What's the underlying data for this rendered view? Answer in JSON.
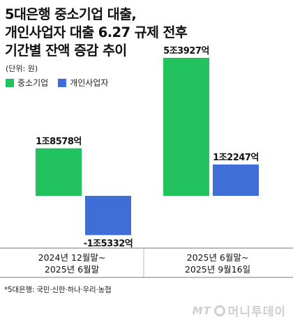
{
  "title_lines": [
    "5대은행 중소기업 대출,",
    "개인사업자 대출 6.27 규제 전후",
    "기간별 잔액 증감 추이"
  ],
  "unit": "(단위: 원)",
  "colors": {
    "sme": "#22c35e",
    "individual": "#3f6fd6"
  },
  "footnote": "*5대은행: 국민·신한·하나·우리·농협",
  "logo": {
    "mark": "MT",
    "text": "머니투데이"
  },
  "chart_data": {
    "type": "bar",
    "categories": [
      {
        "line1": "2024년 12월말~",
        "line2": "2025년 6월말"
      },
      {
        "line1": "2025년 6월말~",
        "line2": "2025년 9월16일"
      }
    ],
    "series": [
      {
        "name": "중소기업",
        "color": "#22c35e",
        "values": [
          18578,
          53927
        ],
        "labels": [
          "1조8578억",
          "5조3927억"
        ]
      },
      {
        "name": "개인사업자",
        "color": "#3f6fd6",
        "values": [
          -15332,
          12247
        ],
        "labels": [
          "-1조5332억",
          "1조2247억"
        ]
      }
    ],
    "value_unit": "억원",
    "ylim": [
      -20000,
      60000
    ],
    "legend": "top-left"
  }
}
